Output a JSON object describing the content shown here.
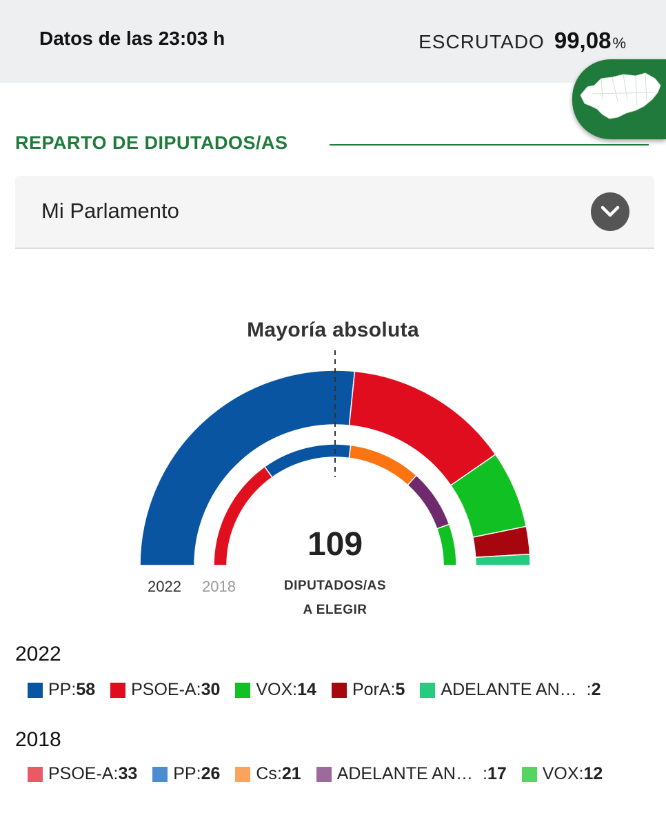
{
  "header": {
    "data_time": "Datos de las 23:03 h",
    "scrutiny_label": "ESCRUTADO",
    "scrutiny_value": "99,08",
    "scrutiny_unit": "%"
  },
  "section": {
    "title": "REPARTO DE DIPUTADOS/AS"
  },
  "dropdown": {
    "selected": "Mi Parlamento"
  },
  "chart_data": {
    "type": "hemicycle",
    "majority_label": "Mayoría absoluta",
    "total_seats": "109",
    "total_caption_line1": "DIPUTADOS/AS",
    "total_caption_line2": "A ELEGIR",
    "series": [
      {
        "name": "2022",
        "ring": "outer",
        "parties": [
          {
            "label": "PP",
            "seats": 58,
            "seats_text": "58",
            "color": "#0a55a2"
          },
          {
            "label": "PSOE-A",
            "seats": 30,
            "seats_text": "30",
            "color": "#e00d1f"
          },
          {
            "label": "VOX",
            "seats": 14,
            "seats_text": "14",
            "color": "#11c022"
          },
          {
            "label": "PorA",
            "seats": 5,
            "seats_text": "5",
            "color": "#a8060f"
          },
          {
            "label": "ADELANTE AN…",
            "seats": 2,
            "seats_text": "2",
            "color": "#26cc7d"
          }
        ]
      },
      {
        "name": "2018",
        "ring": "inner",
        "parties": [
          {
            "label": "PSOE-A",
            "seats": 33,
            "seats_text": "33",
            "color": "#e0101e",
            "legend_color": "#ea5a64"
          },
          {
            "label": "PP",
            "seats": 26,
            "seats_text": "26",
            "color": "#0a55a2",
            "legend_color": "#4d8cd0"
          },
          {
            "label": "Cs",
            "seats": 21,
            "seats_text": "21",
            "color": "#fd7513",
            "legend_color": "#fca45e"
          },
          {
            "label": "ADELANTE AN…",
            "seats": 17,
            "seats_text": "17",
            "color": "#6e2a6c",
            "legend_color": "#9c6a9c"
          },
          {
            "label": "VOX",
            "seats": 12,
            "seats_text": "12",
            "color": "#11c022",
            "legend_color": "#55d461"
          }
        ]
      }
    ]
  }
}
